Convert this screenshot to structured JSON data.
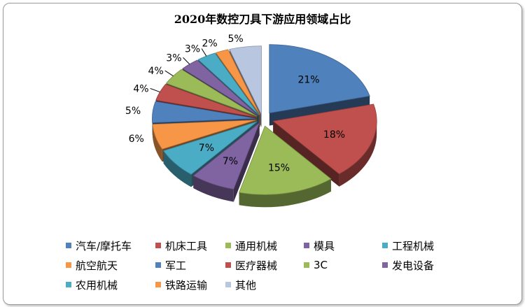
{
  "chart_data": {
    "type": "pie",
    "title": "2020年数控刀具下游应用领域占比",
    "labels": [
      "汽车/摩托车",
      "机床工具",
      "通用机械",
      "模具",
      "工程机械",
      "航空航天",
      "军工",
      "医疗器械",
      "3C",
      "发电设备",
      "农用机械",
      "铁路运输",
      "其他"
    ],
    "values": [
      21,
      18,
      15,
      7,
      7,
      6,
      5,
      4,
      4,
      3,
      3,
      2,
      5
    ],
    "value_labels": [
      "21%",
      "18%",
      "15%",
      "7%",
      "7%",
      "6%",
      "5%",
      "4%",
      "4%",
      "3%",
      "3%",
      "2%",
      "5%"
    ],
    "colors": [
      "#4f81bd",
      "#c0504d",
      "#9bbb59",
      "#8064a2",
      "#4bacc6",
      "#f79646",
      "#4f81bd",
      "#c0504d",
      "#9bbb59",
      "#8064a2",
      "#4bacc6",
      "#f79646",
      "#b9c6e0"
    ],
    "style": "3d-exploded",
    "legend_position": "bottom"
  }
}
